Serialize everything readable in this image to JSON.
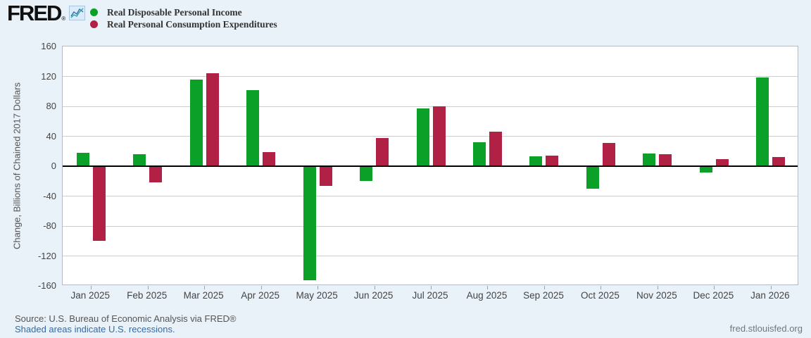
{
  "brand": {
    "logo_text": "FRED",
    "registered_mark": "®",
    "sparkline_icon": "fred-sparkline-icon"
  },
  "legend": [
    {
      "label": "Real Disposable Personal Income",
      "color": "#0ba129"
    },
    {
      "label": "Real Personal Consumption Expenditures",
      "color": "#b12145"
    }
  ],
  "chart_data": {
    "type": "bar",
    "title": "",
    "xlabel": "",
    "ylabel": "Change, Billions of Chained 2017 Dollars",
    "ylim": [
      -160,
      160
    ],
    "yticks": [
      160,
      120,
      80,
      40,
      0,
      -40,
      -80,
      -120,
      -160
    ],
    "grid": true,
    "legend_position": "top-left",
    "categories": [
      "Jan 2025",
      "Feb 2025",
      "Mar 2025",
      "Apr 2025",
      "May 2025",
      "Jun 2025",
      "Jul 2025",
      "Aug 2025",
      "Sep 2025",
      "Oct 2025",
      "Nov 2025",
      "Dec 2025",
      "Jan 2026"
    ],
    "series": [
      {
        "name": "Real Disposable Personal Income",
        "color": "#0ba129",
        "values": [
          18,
          16,
          116,
          102,
          -152,
          -20,
          77,
          32,
          13,
          -30,
          17,
          -8,
          119
        ]
      },
      {
        "name": "Real Personal Consumption Expenditures",
        "color": "#b12145",
        "values": [
          -100,
          -22,
          124,
          19,
          -26,
          38,
          80,
          46,
          14,
          31,
          16,
          9,
          12
        ]
      }
    ]
  },
  "footer": {
    "source": "Source: U.S. Bureau of Economic Analysis via FRED®",
    "recession_note": "Shaded areas indicate U.S. recessions.",
    "site": "fred.stlouisfed.org"
  },
  "colors": {
    "page_background": "#e9f1f9",
    "plot_background": "#ffffff",
    "gridline": "#cdcdcd",
    "zero_axis": "#000000",
    "income_green": "#0ba129",
    "pce_crimson": "#b12145"
  }
}
